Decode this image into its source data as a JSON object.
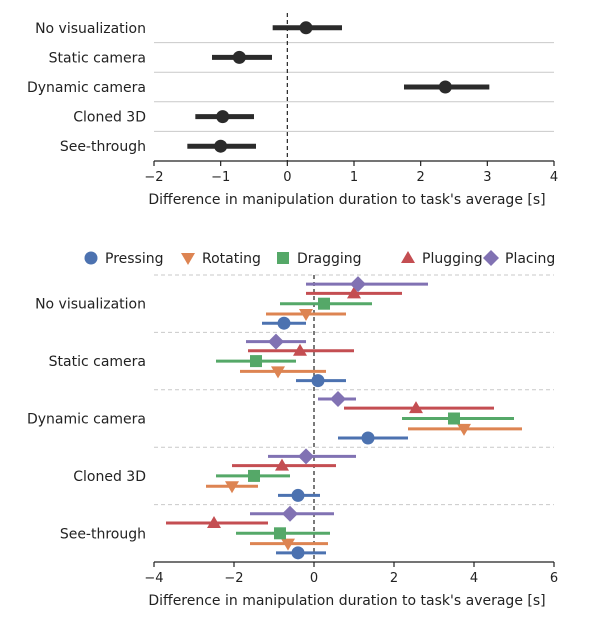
{
  "chart_data": [
    {
      "type": "errorbar",
      "orientation": "horizontal",
      "xlabel": "Difference in manipulation duration to task's average [s]",
      "xlim": [
        -2,
        4
      ],
      "xticks": [
        "−2",
        "−1",
        "0",
        "1",
        "2",
        "3",
        "4"
      ],
      "xtick_values": [
        -2,
        -1,
        0,
        1,
        2,
        3,
        4
      ],
      "reference_line": 0,
      "grid": "horizontal separators",
      "categories": [
        "No visualization",
        "Static camera",
        "Dynamic camera",
        "Cloned 3D",
        "See-through"
      ],
      "series": [
        {
          "color": "#2b2b2b",
          "marker": "circle",
          "points": [
            {
              "category": "No visualization",
              "mean": 0.28,
              "low": -0.22,
              "high": 0.82
            },
            {
              "category": "Static camera",
              "mean": -0.72,
              "low": -1.13,
              "high": -0.23
            },
            {
              "category": "Dynamic camera",
              "mean": 2.37,
              "low": 1.75,
              "high": 3.03
            },
            {
              "category": "Cloned 3D",
              "mean": -0.97,
              "low": -1.38,
              "high": -0.5
            },
            {
              "category": "See-through",
              "mean": -1.0,
              "low": -1.5,
              "high": -0.47
            }
          ]
        }
      ]
    },
    {
      "type": "errorbar",
      "orientation": "horizontal",
      "xlabel": "Difference in manipulation duration to task's average [s]",
      "xlim": [
        -4,
        6
      ],
      "xticks": [
        "−4",
        "−2",
        "0",
        "2",
        "4",
        "6"
      ],
      "xtick_values": [
        -4,
        -2,
        0,
        2,
        4,
        6
      ],
      "reference_line": 0,
      "grid": "dashed horizontal separators",
      "legend_placement": "top",
      "categories": [
        "No visualization",
        "Static camera",
        "Dynamic camera",
        "Cloned 3D",
        "See-through"
      ],
      "series": [
        {
          "name": "Pressing",
          "color": "#4c72b0",
          "marker": "circle",
          "points": [
            {
              "category": "No visualization",
              "mean": -0.75,
              "low": -1.3,
              "high": -0.2
            },
            {
              "category": "Static camera",
              "mean": 0.1,
              "low": -0.45,
              "high": 0.8
            },
            {
              "category": "Dynamic camera",
              "mean": 1.35,
              "low": 0.6,
              "high": 2.35
            },
            {
              "category": "Cloned 3D",
              "mean": -0.4,
              "low": -0.9,
              "high": 0.15
            },
            {
              "category": "See-through",
              "mean": -0.4,
              "low": -0.95,
              "high": 0.3
            }
          ]
        },
        {
          "name": "Rotating",
          "color": "#dd8452",
          "marker": "triangle-down",
          "points": [
            {
              "category": "No visualization",
              "mean": -0.2,
              "low": -1.2,
              "high": 0.8
            },
            {
              "category": "Static camera",
              "mean": -0.9,
              "low": -1.85,
              "high": 0.3
            },
            {
              "category": "Dynamic camera",
              "mean": 3.75,
              "low": 2.35,
              "high": 5.2
            },
            {
              "category": "Cloned 3D",
              "mean": -2.05,
              "low": -2.7,
              "high": -1.4
            },
            {
              "category": "See-through",
              "mean": -0.65,
              "low": -1.6,
              "high": 0.35
            }
          ]
        },
        {
          "name": "Dragging",
          "color": "#55a868",
          "marker": "square",
          "points": [
            {
              "category": "No visualization",
              "mean": 0.25,
              "low": -0.85,
              "high": 1.45
            },
            {
              "category": "Static camera",
              "mean": -1.45,
              "low": -2.45,
              "high": -0.45
            },
            {
              "category": "Dynamic camera",
              "mean": 3.5,
              "low": 2.2,
              "high": 5.0
            },
            {
              "category": "Cloned 3D",
              "mean": -1.5,
              "low": -2.45,
              "high": -0.6
            },
            {
              "category": "See-through",
              "mean": -0.85,
              "low": -1.95,
              "high": 0.4
            }
          ]
        },
        {
          "name": "Plugging",
          "color": "#c44e52",
          "marker": "triangle-up",
          "points": [
            {
              "category": "No visualization",
              "mean": 1.0,
              "low": -0.2,
              "high": 2.2
            },
            {
              "category": "Static camera",
              "mean": -0.35,
              "low": -1.65,
              "high": 1.0
            },
            {
              "category": "Dynamic camera",
              "mean": 2.55,
              "low": 0.75,
              "high": 4.5
            },
            {
              "category": "Cloned 3D",
              "mean": -0.8,
              "low": -2.05,
              "high": 0.55
            },
            {
              "category": "See-through",
              "mean": -2.5,
              "low": -3.7,
              "high": -1.15
            }
          ]
        },
        {
          "name": "Placing",
          "color": "#8172b3",
          "marker": "diamond",
          "points": [
            {
              "category": "No visualization",
              "mean": 1.1,
              "low": -0.2,
              "high": 2.85
            },
            {
              "category": "Static camera",
              "mean": -0.95,
              "low": -1.7,
              "high": -0.2
            },
            {
              "category": "Dynamic camera",
              "mean": 0.6,
              "low": 0.1,
              "high": 1.05
            },
            {
              "category": "Cloned 3D",
              "mean": -0.2,
              "low": -1.15,
              "high": 1.05
            },
            {
              "category": "See-through",
              "mean": -0.6,
              "low": -1.6,
              "high": 0.5
            }
          ]
        }
      ]
    }
  ]
}
